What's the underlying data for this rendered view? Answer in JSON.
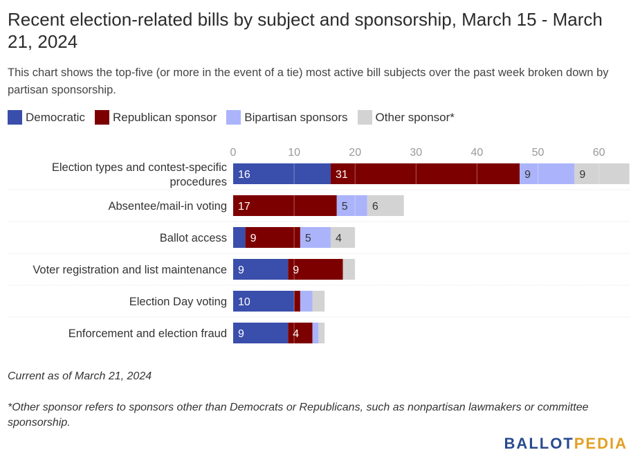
{
  "title": "Recent election-related bills by subject and sponsorship, March 15 - March 21, 2024",
  "subtitle": "This chart shows the top-five (or more in the event of a tie) most active bill subjects over the past week broken down by partisan sponsorship.",
  "legend": [
    {
      "label": "Democratic",
      "color": "#3a4eab"
    },
    {
      "label": "Republican sponsor",
      "color": "#7d0000"
    },
    {
      "label": "Bipartisan sponsors",
      "color": "#abb4fa"
    },
    {
      "label": "Other sponsor*",
      "color": "#d3d3d3"
    }
  ],
  "chart_data": {
    "type": "bar",
    "orientation": "horizontal",
    "stacked": true,
    "categories": [
      "Election types and contest-specific procedures",
      "Absentee/mail-in voting",
      "Ballot access",
      "Voter registration and list maintenance",
      "Election Day voting",
      "Enforcement and election fraud"
    ],
    "series": [
      {
        "name": "Democratic",
        "color": "#3a4eab",
        "values": [
          16,
          0,
          2,
          9,
          10,
          9
        ],
        "labels": [
          "16",
          "",
          "",
          "9",
          "10",
          "9"
        ]
      },
      {
        "name": "Republican sponsor",
        "color": "#7d0000",
        "values": [
          31,
          17,
          9,
          9,
          1,
          4
        ],
        "labels": [
          "31",
          "17",
          "9",
          "9",
          "",
          "4"
        ]
      },
      {
        "name": "Bipartisan sponsors",
        "color": "#abb4fa",
        "values": [
          9,
          5,
          5,
          0,
          2,
          1
        ],
        "labels": [
          "9",
          "5",
          "5",
          "",
          "",
          ""
        ]
      },
      {
        "name": "Other sponsor*",
        "color": "#d3d3d3",
        "values": [
          9,
          6,
          4,
          2,
          2,
          1
        ],
        "labels": [
          "9",
          "6",
          "4",
          "",
          "",
          ""
        ]
      }
    ],
    "x_ticks": [
      0,
      10,
      20,
      30,
      40,
      50,
      60
    ],
    "xlim": [
      0,
      65
    ],
    "grid": true
  },
  "notes": {
    "as_of": "Current as of March 21, 2024",
    "footnote": "*Other sponsor refers to sponsors other than Democrats or Republicans, such as nonpartisan lawmakers or committee sponsorship."
  },
  "logo": {
    "part1": "BALLOT",
    "part2": "PEDIA"
  }
}
